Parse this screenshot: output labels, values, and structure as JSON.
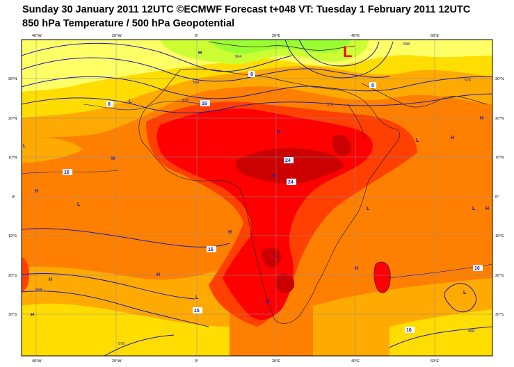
{
  "header": {
    "line1": "Sunday 30 January 2011 12UTC ©ECMWF Forecast t+048 VT: Tuesday 1 February 2011 12UTC",
    "line2": "850 hPa Temperature / 500 hPa Geopotential"
  },
  "map": {
    "top_lon_labels": [
      "40°W",
      "20°W",
      "0°",
      "20°E",
      "40°E",
      "60°E"
    ],
    "bottom_lon_labels": [
      "40°W",
      "20°W",
      "0°",
      "20°E",
      "40°E",
      "60°E"
    ],
    "left_lat_labels": [
      "30°N",
      "20°N",
      "10°N",
      "0°",
      "10°S",
      "20°S",
      "30°S"
    ],
    "right_lat_labels": [
      "30°N",
      "20°N",
      "10°N",
      "0°",
      "10°S",
      "20°S",
      "30°S"
    ],
    "low_center_symbol": "L",
    "temperature_labels": [
      "8",
      "8",
      "8",
      "16",
      "16",
      "16",
      "16",
      "16",
      "24",
      "24",
      "15"
    ],
    "geopotential_labels": [
      "564",
      "576",
      "576",
      "564",
      "576",
      "564",
      "588",
      "588",
      "576"
    ],
    "pressure_letters": [
      "H",
      "H",
      "H",
      "H",
      "H",
      "H",
      "H",
      "H",
      "H",
      "H",
      "H",
      "H",
      "H",
      "H",
      "L",
      "L",
      "L",
      "L",
      "L",
      "L",
      "L",
      "L",
      "L"
    ],
    "colors": {
      "yellow_light": "#ffff66",
      "yellow": "#ffdd00",
      "light_orange": "#ffaa00",
      "orange": "#ff8000",
      "red_orange": "#ff4000",
      "red": "#ff0000",
      "dark_red": "#cc0000",
      "green": "#99ff33",
      "geopotential_contour": "#1a1ab0",
      "low_marker": "#ff0000"
    }
  }
}
